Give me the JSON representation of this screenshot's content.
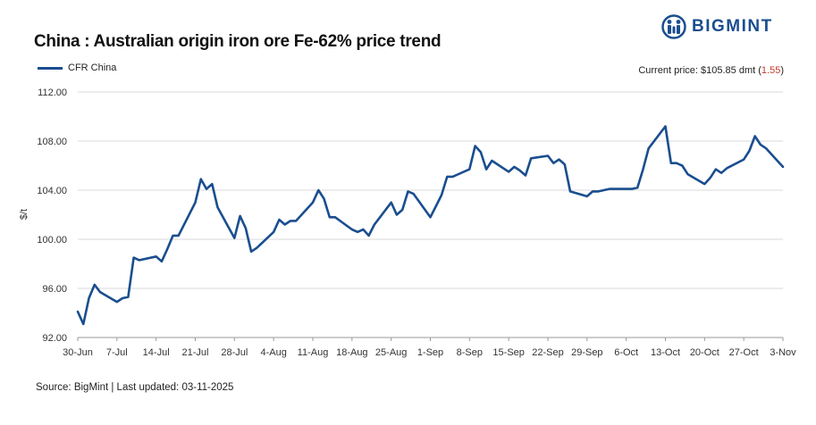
{
  "header": {
    "title": "China : Australian origin iron ore Fe-62% price trend",
    "brand": "BIGMINT",
    "legend_label": "CFR China",
    "current_prefix": "Current price: $105.85 dmt (",
    "current_change": "1.55",
    "current_suffix": ")"
  },
  "footer": {
    "source": "Source: BigMint | Last updated: 03-11-2025"
  },
  "colors": {
    "series": "#1a4e8f",
    "change": "#c0392b",
    "grid": "#d9d9d9"
  },
  "chart_data": {
    "type": "line",
    "title": "China : Australian origin iron ore Fe-62% price trend",
    "xlabel": "",
    "ylabel": "$/t",
    "ylim": [
      92,
      112
    ],
    "yticks": [
      "92.00",
      "96.00",
      "100.00",
      "104.00",
      "108.00",
      "112.00"
    ],
    "xticks": [
      "30-Jun",
      "7-Jul",
      "14-Jul",
      "21-Jul",
      "28-Jul",
      "4-Aug",
      "11-Aug",
      "18-Aug",
      "25-Aug",
      "1-Sep",
      "8-Sep",
      "15-Sep",
      "22-Sep",
      "29-Sep",
      "6-Oct",
      "13-Oct",
      "20-Oct",
      "27-Oct",
      "3-Nov"
    ],
    "grid": true,
    "legend": "top-left",
    "series": [
      {
        "name": "CFR China",
        "x_days": [
          0,
          1,
          2,
          3,
          4,
          7,
          8,
          9,
          10,
          11,
          14,
          15,
          16,
          17,
          18,
          21,
          22,
          23,
          24,
          25,
          28,
          29,
          30,
          31,
          32,
          35,
          36,
          37,
          38,
          39,
          42,
          43,
          44,
          45,
          46,
          49,
          50,
          51,
          52,
          53,
          56,
          57,
          58,
          59,
          60,
          63,
          64,
          65,
          66,
          67,
          70,
          71,
          72,
          73,
          74,
          77,
          78,
          79,
          80,
          81,
          84,
          85,
          86,
          87,
          88,
          91,
          92,
          93,
          94,
          95,
          98,
          99,
          100,
          101,
          102,
          105,
          106,
          107,
          108,
          109,
          112,
          113,
          114,
          115,
          116,
          119,
          120,
          121,
          122,
          123,
          126
        ],
        "values": [
          94.1,
          93.1,
          95.2,
          96.3,
          95.7,
          94.9,
          95.2,
          95.3,
          98.5,
          98.3,
          98.6,
          98.2,
          99.2,
          100.3,
          100.3,
          103,
          104.9,
          104.1,
          104.5,
          102.6,
          100.1,
          101.9,
          100.9,
          99,
          99.3,
          100.6,
          101.6,
          101.2,
          101.5,
          101.5,
          103,
          104,
          103.3,
          101.8,
          101.8,
          100.8,
          100.6,
          100.8,
          100.3,
          101.2,
          103,
          102,
          102.4,
          103.9,
          103.7,
          101.8,
          102.7,
          103.6,
          105.1,
          105.1,
          105.7,
          107.6,
          107.1,
          105.7,
          106.4,
          105.5,
          105.9,
          105.6,
          105.2,
          106.6,
          106.8,
          106.2,
          106.5,
          106.1,
          103.9,
          103.5,
          103.9,
          103.9,
          104,
          104.1,
          104.1,
          104.1,
          104.2,
          105.7,
          107.4,
          109.2,
          106.2,
          106.2,
          106,
          105.3,
          104.5,
          105,
          105.7,
          105.4,
          105.8,
          106.5,
          107.2,
          108.4,
          107.7,
          107.4,
          105.9
        ]
      }
    ]
  }
}
